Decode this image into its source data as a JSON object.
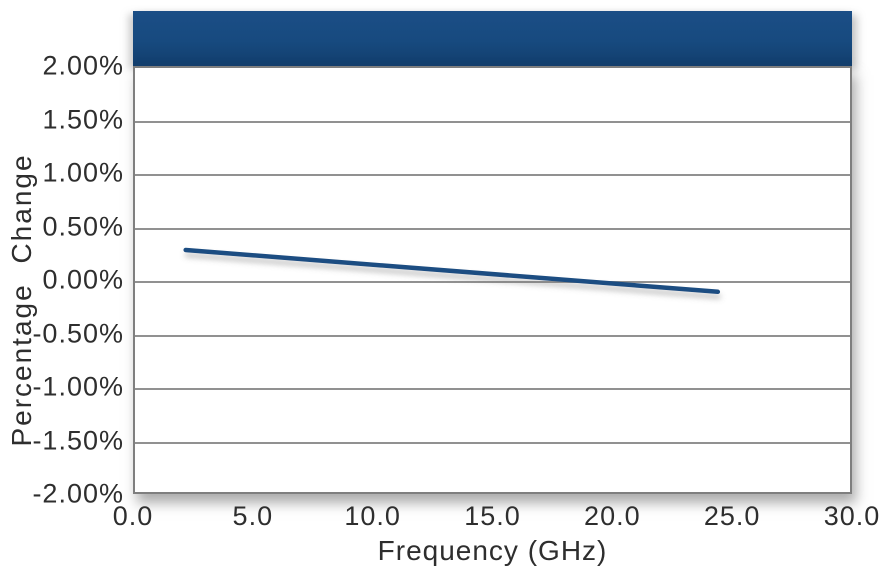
{
  "chart": {
    "y_axis_title": "Percentage Change",
    "x_axis_title": "Frequency (GHz)",
    "colors": {
      "header_band": "#174a7f",
      "series_line": "#1b4e82",
      "gridline": "#919191",
      "plot_border": "#7f7f7f",
      "text": "#2e2e2e",
      "background": "#ffffff"
    }
  },
  "chart_data": {
    "type": "line",
    "title": "",
    "xlabel": "Frequency (GHz)",
    "ylabel": "Percentage Change",
    "xlim": [
      0,
      30
    ],
    "ylim": [
      -2,
      2
    ],
    "grid": "horizontal",
    "legend": "none",
    "x_ticks": [
      {
        "value": 0,
        "label": "0.0"
      },
      {
        "value": 5,
        "label": "5.0"
      },
      {
        "value": 10,
        "label": "10.0"
      },
      {
        "value": 15,
        "label": "15.0"
      },
      {
        "value": 20,
        "label": "20.0"
      },
      {
        "value": 25,
        "label": "25.0"
      },
      {
        "value": 30,
        "label": "30.0"
      }
    ],
    "y_ticks": [
      {
        "value": 2.0,
        "label": "2.00%"
      },
      {
        "value": 1.5,
        "label": "1.50%"
      },
      {
        "value": 1.0,
        "label": "1.00%"
      },
      {
        "value": 0.5,
        "label": "0.50%"
      },
      {
        "value": 0.0,
        "label": "0.00%"
      },
      {
        "value": -0.5,
        "label": "-0.50%"
      },
      {
        "value": -1.0,
        "label": "-1.00%"
      },
      {
        "value": -1.5,
        "label": "-1.50%"
      },
      {
        "value": -2.0,
        "label": "-2.00%"
      }
    ],
    "series": [
      {
        "name": "Percentage Change",
        "color": "#1b4e82",
        "points": [
          {
            "x": 2.2,
            "y": 0.28
          },
          {
            "x": 24.4,
            "y": -0.11
          }
        ]
      }
    ]
  }
}
